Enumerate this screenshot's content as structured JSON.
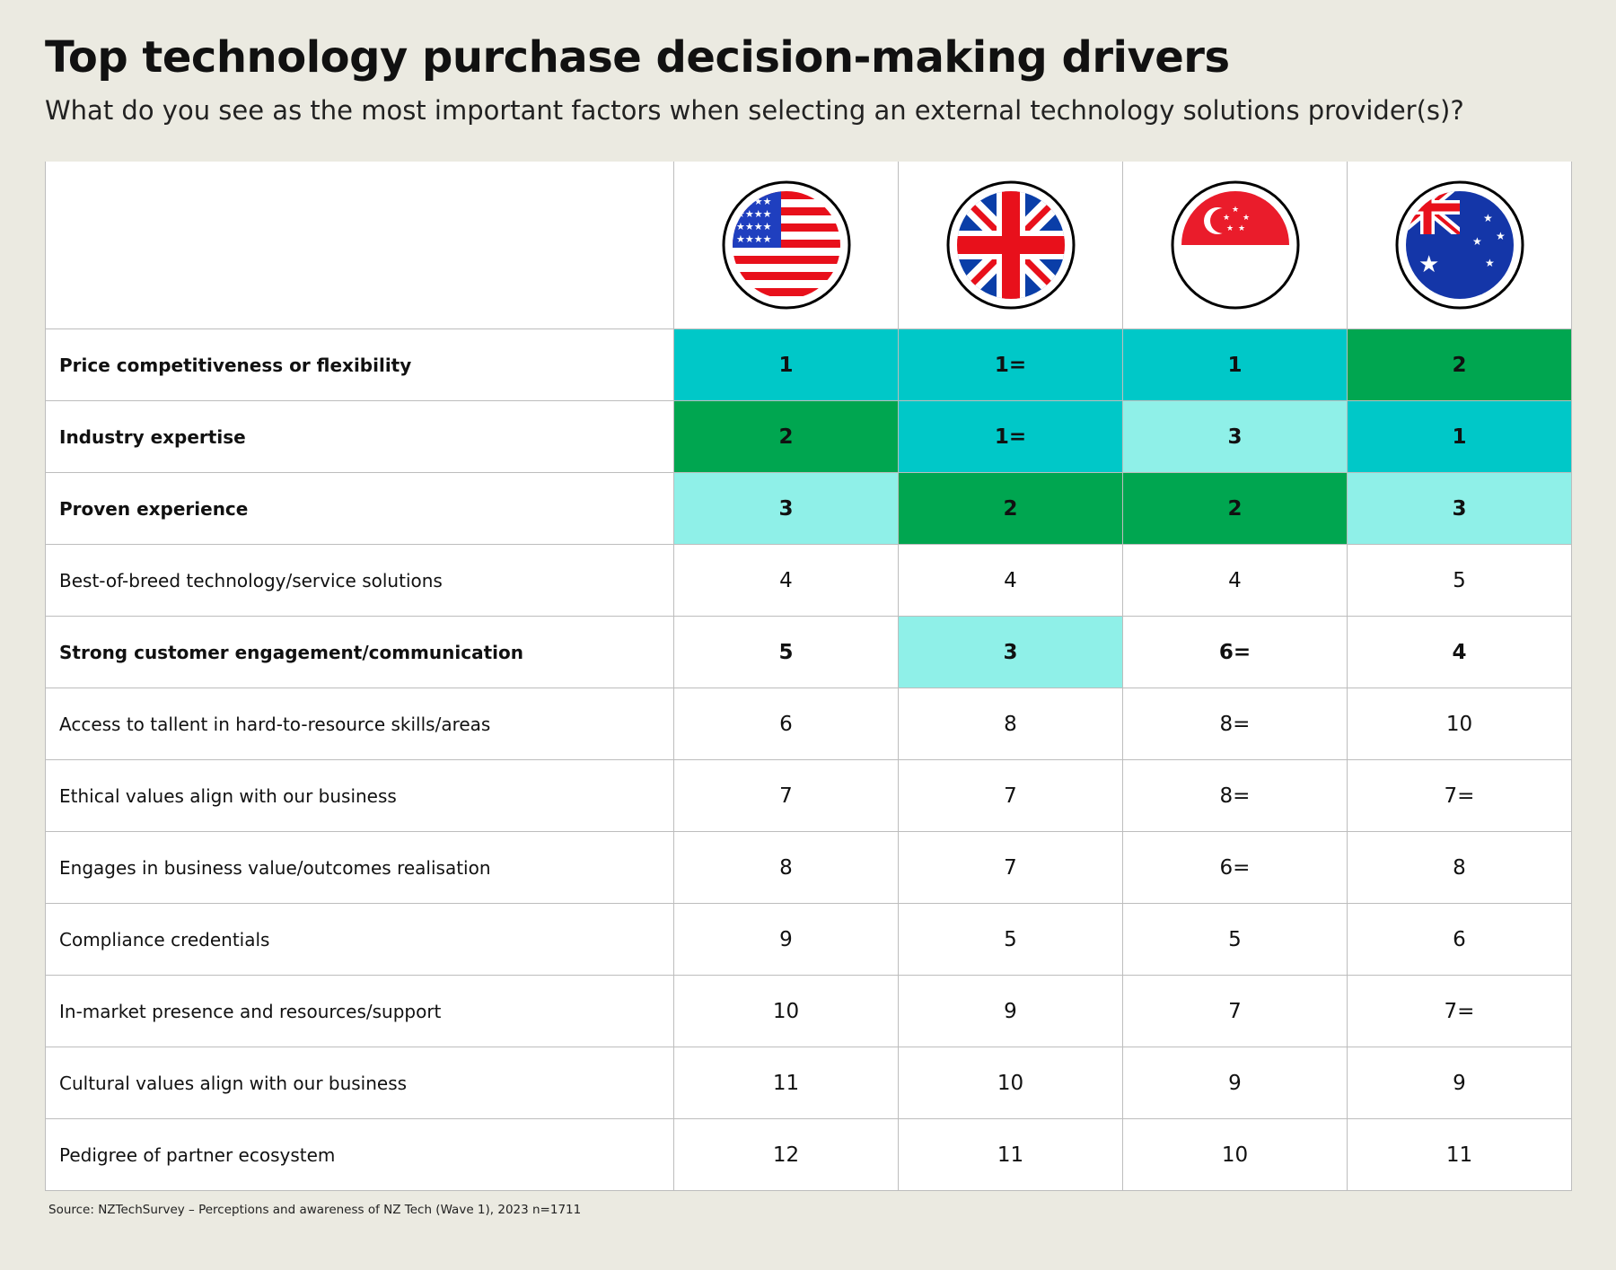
{
  "title": "Top technology purchase decision-making drivers",
  "subtitle": "What do you see as the most important factors when selecting an external technology solutions provider(s)?",
  "source": "Source: NZTechSurvey – Perceptions and awareness of NZ Tech (Wave 1), 2023 n=1711",
  "colors": {
    "rank1": "#00c8c8",
    "rank2": "#00a650",
    "rank3": "#8ff0e8",
    "background": "#ebeae1"
  },
  "chart_data": {
    "type": "table",
    "columns": [
      {
        "icon": "usa-flag-icon"
      },
      {
        "icon": "uk-flag-icon"
      },
      {
        "icon": "singapore-flag-icon"
      },
      {
        "icon": "australia-flag-icon"
      }
    ],
    "rows": [
      {
        "label": "Price competitiveness or flexibility",
        "bold": true,
        "values": [
          "1",
          "1=",
          "1",
          "2"
        ]
      },
      {
        "label": "Industry expertise",
        "bold": true,
        "values": [
          "2",
          "1=",
          "3",
          "1"
        ]
      },
      {
        "label": "Proven experience",
        "bold": true,
        "values": [
          "3",
          "2",
          "2",
          "3"
        ]
      },
      {
        "label": "Best-of-breed technology/service solutions",
        "bold": false,
        "values": [
          "4",
          "4",
          "4",
          "5"
        ]
      },
      {
        "label": "Strong customer engagement/communication",
        "bold": true,
        "values": [
          "5",
          "3",
          "6=",
          "4"
        ]
      },
      {
        "label": "Access to tallent in hard-to-resource skills/areas",
        "bold": false,
        "values": [
          "6",
          "8",
          "8=",
          "10"
        ]
      },
      {
        "label": "Ethical values align with our business",
        "bold": false,
        "values": [
          "7",
          "7",
          "8=",
          "7="
        ]
      },
      {
        "label": "Engages in business value/outcomes realisation",
        "bold": false,
        "values": [
          "8",
          "7",
          "6=",
          "8"
        ]
      },
      {
        "label": "Compliance credentials",
        "bold": false,
        "values": [
          "9",
          "5",
          "5",
          "6"
        ]
      },
      {
        "label": "In-market presence and resources/support",
        "bold": false,
        "values": [
          "10",
          "9",
          "7",
          "7="
        ]
      },
      {
        "label": "Cultural values align with our business",
        "bold": false,
        "values": [
          "11",
          "10",
          "9",
          "9"
        ]
      },
      {
        "label": "Pedigree of partner ecosystem",
        "bold": false,
        "values": [
          "12",
          "11",
          "10",
          "11"
        ]
      }
    ]
  }
}
